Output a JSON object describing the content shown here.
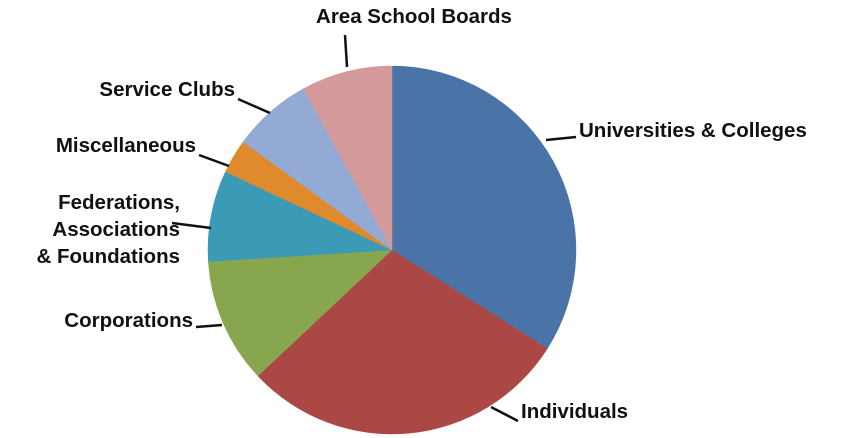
{
  "chart_data": {
    "type": "pie",
    "title": "",
    "start_angle_deg": 0,
    "direction": "clockwise",
    "legend": "none (callout labels)",
    "slices": [
      {
        "label": "Universities & Colleges",
        "value": 34,
        "color": "#4a73a8"
      },
      {
        "label": "Individuals",
        "value": 29,
        "color": "#ab4845"
      },
      {
        "label": "Corporations",
        "value": 11,
        "color": "#88a64e"
      },
      {
        "label": "Federations,\nAssociations\n& Foundations",
        "value": 8,
        "color": "#3b9ab5"
      },
      {
        "label": "Miscellaneous",
        "value": 3,
        "color": "#e08a2e"
      },
      {
        "label": "Service Clubs",
        "value": 7,
        "color": "#93aad4"
      },
      {
        "label": "Area School Boards",
        "value": 8,
        "color": "#d49a9b"
      }
    ]
  }
}
